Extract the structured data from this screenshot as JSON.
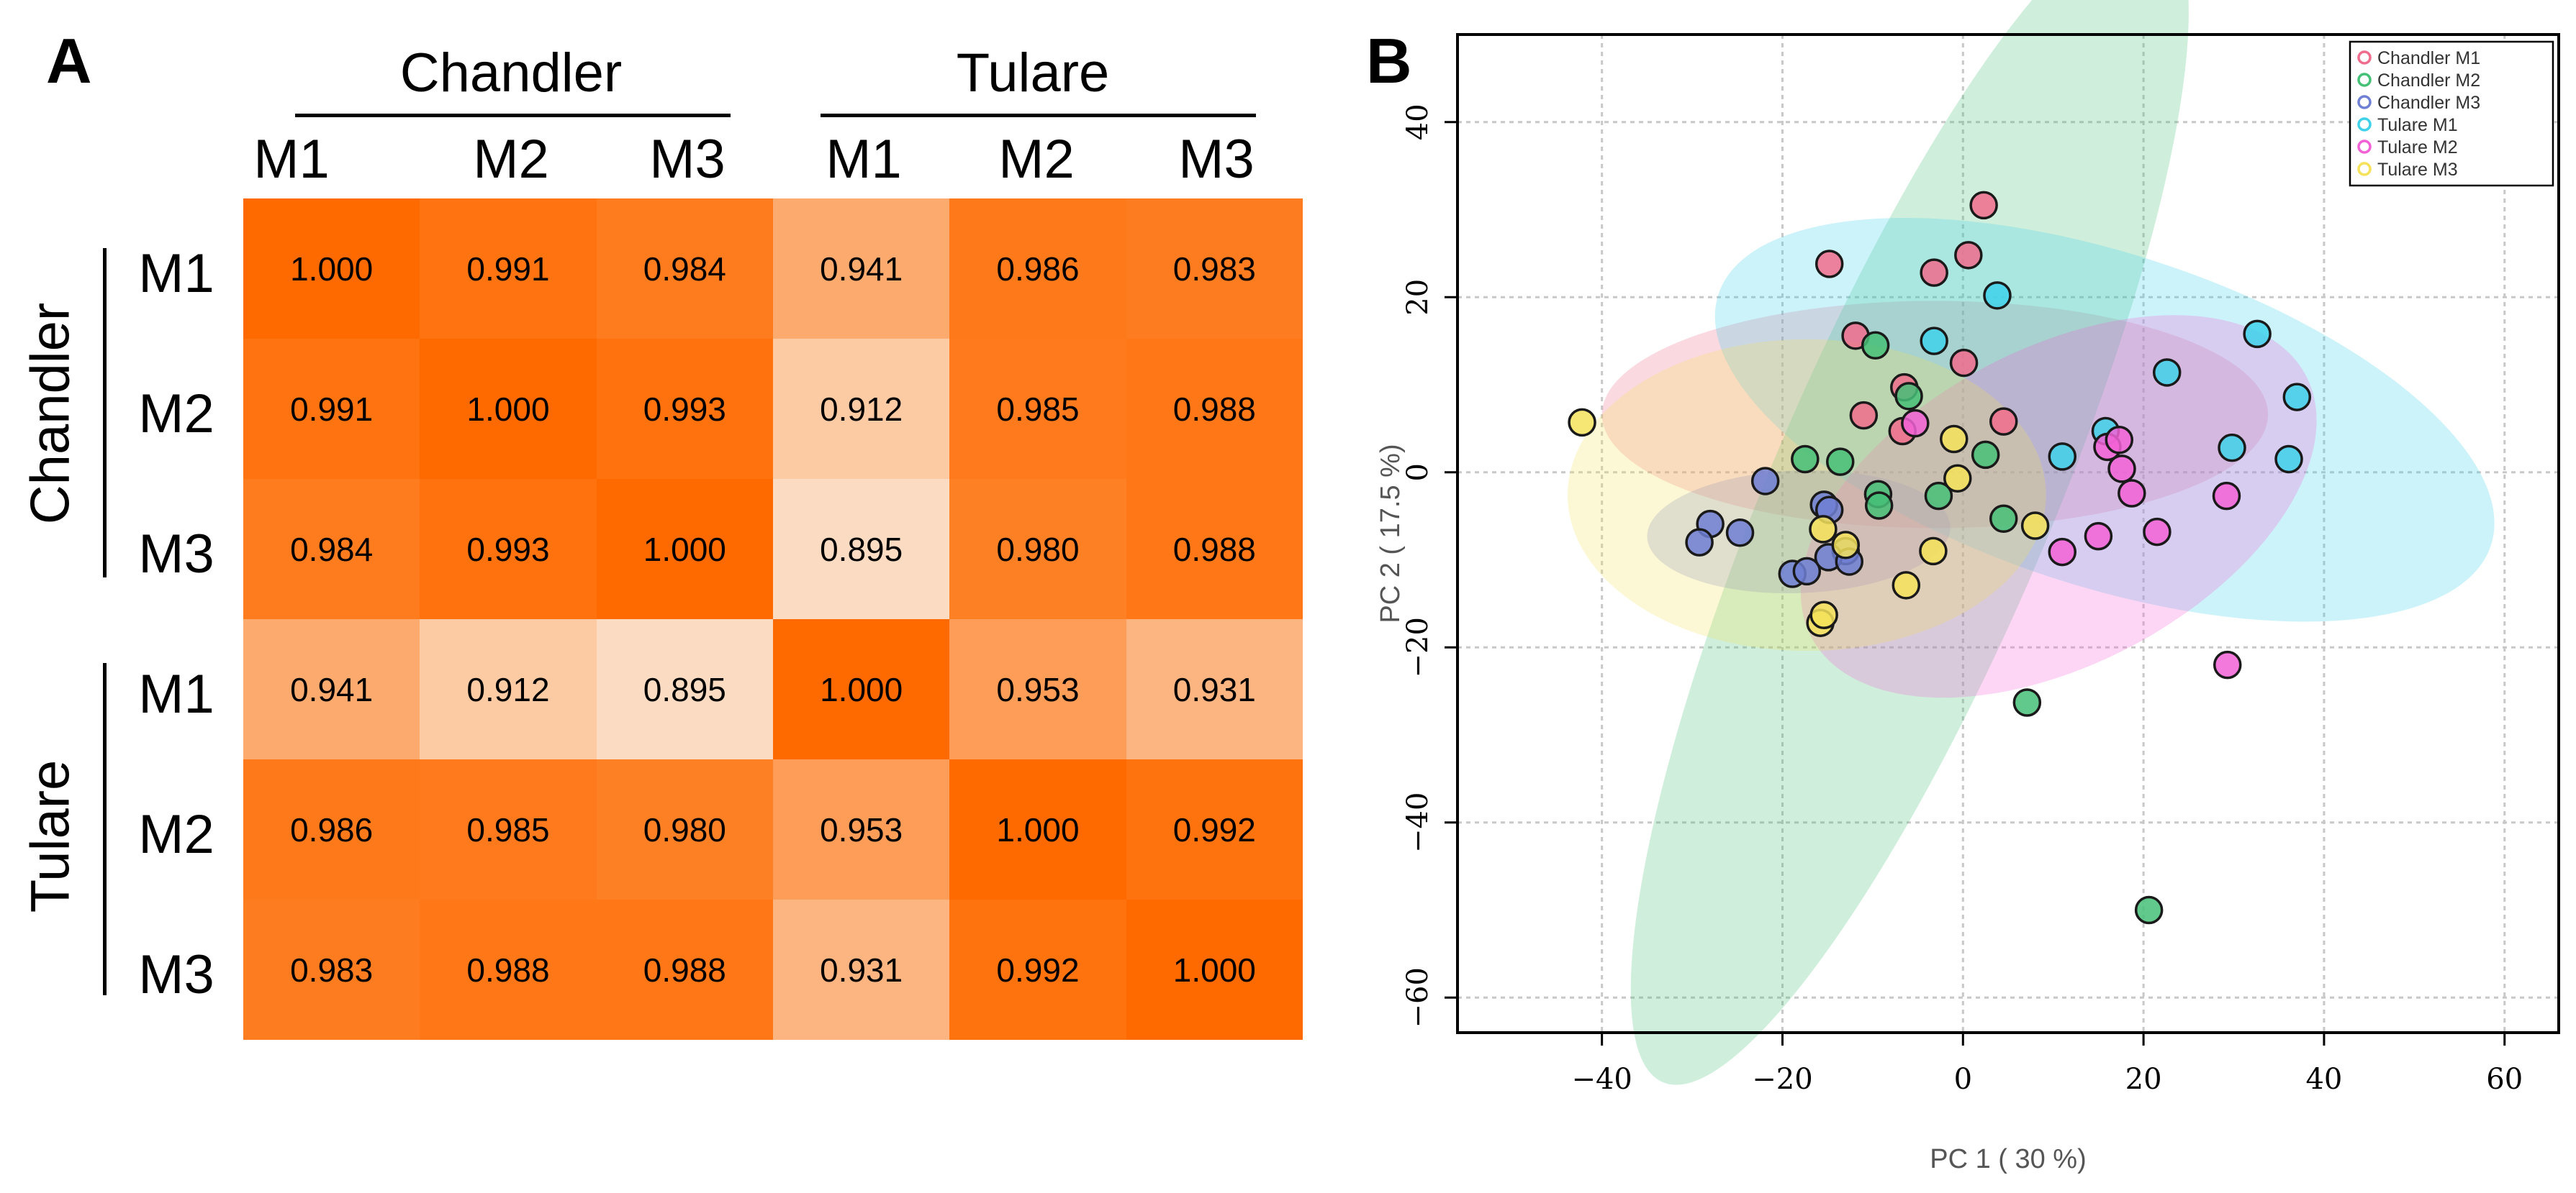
{
  "panels": {
    "a_label": "A",
    "b_label": "B"
  },
  "chart_data": [
    {
      "type": "heatmap",
      "title": "",
      "column_groups": [
        "Chandler",
        "Tulare"
      ],
      "row_groups": [
        "Chandler",
        "Tulare"
      ],
      "columns": [
        "M1",
        "M2",
        "M3",
        "M1",
        "M2",
        "M3"
      ],
      "rows": [
        "M1",
        "M2",
        "M3",
        "M1",
        "M2",
        "M3"
      ],
      "values": [
        [
          1.0,
          0.991,
          0.984,
          0.941,
          0.986,
          0.983
        ],
        [
          0.991,
          1.0,
          0.993,
          0.912,
          0.985,
          0.988
        ],
        [
          0.984,
          0.993,
          1.0,
          0.895,
          0.98,
          0.988
        ],
        [
          0.941,
          0.912,
          0.895,
          1.0,
          0.953,
          0.931
        ],
        [
          0.986,
          0.985,
          0.98,
          0.953,
          1.0,
          0.992
        ],
        [
          0.983,
          0.988,
          0.988,
          0.931,
          0.992,
          1.0
        ]
      ],
      "value_labels": [
        [
          "1.000",
          "0.991",
          "0.984",
          "0.941",
          "0.986",
          "0.983"
        ],
        [
          "0.991",
          "1.000",
          "0.993",
          "0.912",
          "0.985",
          "0.988"
        ],
        [
          "0.984",
          "0.993",
          "1.000",
          "0.895",
          "0.980",
          "0.988"
        ],
        [
          "0.941",
          "0.912",
          "0.895",
          "1.000",
          "0.953",
          "0.931"
        ],
        [
          "0.986",
          "0.985",
          "0.980",
          "0.953",
          "1.000",
          "0.992"
        ],
        [
          "0.983",
          "0.988",
          "0.988",
          "0.931",
          "0.992",
          "1.000"
        ]
      ],
      "value_range": [
        0.895,
        1.0
      ],
      "colors": {
        "low": "#FBDCC3",
        "high": "#FF6A00"
      }
    },
    {
      "type": "scatter",
      "title": "",
      "xlabel": "PC 1 ( 30 %)",
      "ylabel": "PC 2 ( 17.5 %)",
      "xlim": [
        -56,
        66
      ],
      "ylim": [
        -64,
        50
      ],
      "xticks": [
        -40,
        -20,
        0,
        20,
        40,
        60
      ],
      "yticks": [
        -60,
        -40,
        -20,
        0,
        20,
        40
      ],
      "xtick_labels": [
        "−40",
        "−20",
        "0",
        "20",
        "40",
        "60"
      ],
      "ytick_labels": [
        "−60",
        "−40",
        "−20",
        "0",
        "20",
        "40"
      ],
      "grid": true,
      "legend_position": "top-right",
      "series": [
        {
          "name": "Chandler M1",
          "color": "#F06C8C",
          "ellipse": {
            "cx": -3.1,
            "cy": 6.6,
            "rx": 12.6,
            "ry": 38,
            "angle": 90
          },
          "points": [
            [
              2.3,
              30.5
            ],
            [
              -14.8,
              23.8
            ],
            [
              -3.2,
              22.8
            ],
            [
              0.6,
              24.8
            ],
            [
              -11.9,
              15.6
            ],
            [
              0.1,
              12.5
            ],
            [
              -6.5,
              9.7
            ],
            [
              -6.7,
              4.7
            ],
            [
              4.5,
              5.8
            ],
            [
              -11.0,
              6.5
            ]
          ]
        },
        {
          "name": "Chandler M2",
          "color": "#45C077",
          "ellipse": {
            "cx": -5.9,
            "cy": -3.3,
            "rx": 70,
            "ry": 16.1,
            "angle": -67
          },
          "points": [
            [
              -9.7,
              14.5
            ],
            [
              -6.0,
              8.7
            ],
            [
              -9.4,
              -2.5
            ],
            [
              -9.3,
              -3.8
            ],
            [
              -2.7,
              -2.7
            ],
            [
              2.5,
              2.0
            ],
            [
              4.5,
              -5.3
            ],
            [
              -17.5,
              1.5
            ],
            [
              -13.6,
              1.2
            ],
            [
              7.1,
              -26.3
            ],
            [
              20.6,
              -50.0
            ]
          ]
        },
        {
          "name": "Chandler M3",
          "color": "#6F7FD3",
          "ellipse": {
            "cx": -18.2,
            "cy": -6.8,
            "rx": 16.8,
            "ry": 7.0,
            "angle": -2
          },
          "points": [
            [
              -21.9,
              -1.0
            ],
            [
              -28.0,
              -5.9
            ],
            [
              -29.2,
              -8.0
            ],
            [
              -24.7,
              -6.9
            ],
            [
              -15.4,
              -3.7
            ],
            [
              -14.8,
              -4.3
            ],
            [
              -13.0,
              -9.0
            ],
            [
              -18.9,
              -11.6
            ],
            [
              -17.3,
              -11.3
            ],
            [
              -14.9,
              -9.7
            ],
            [
              -12.6,
              -10.2
            ]
          ]
        },
        {
          "name": "Tulare M1",
          "color": "#3FD1EA",
          "ellipse": {
            "cx": 15.7,
            "cy": 6.0,
            "rx": 45,
            "ry": 19.0,
            "angle": 18
          },
          "points": [
            [
              -3.2,
              15.0
            ],
            [
              3.8,
              20.2
            ],
            [
              11.0,
              1.8
            ],
            [
              15.8,
              4.7
            ],
            [
              22.6,
              11.4
            ],
            [
              29.8,
              2.8
            ],
            [
              32.6,
              15.8
            ],
            [
              36.1,
              1.5
            ],
            [
              37.0,
              8.6
            ]
          ]
        },
        {
          "name": "Tulare M2",
          "color": "#F261D6",
          "ellipse": {
            "cx": 10.6,
            "cy": -3.9,
            "rx": 31,
            "ry": 18.0,
            "angle": -28
          },
          "points": [
            [
              -5.3,
              5.6
            ],
            [
              16.0,
              2.9
            ],
            [
              17.3,
              3.7
            ],
            [
              17.6,
              0.4
            ],
            [
              18.7,
              -2.4
            ],
            [
              15.0,
              -7.3
            ],
            [
              11.0,
              -9.1
            ],
            [
              21.5,
              -6.8
            ],
            [
              29.2,
              -2.7
            ],
            [
              29.3,
              -22.0
            ]
          ]
        },
        {
          "name": "Tulare M3",
          "color": "#F5E25A",
          "ellipse": {
            "cx": -17.3,
            "cy": -2.6,
            "rx": 26.5,
            "ry": 17.8,
            "angle": 0
          },
          "points": [
            [
              -42.2,
              5.7
            ],
            [
              -15.5,
              -6.5
            ],
            [
              -13.0,
              -8.3
            ],
            [
              -6.3,
              -12.9
            ],
            [
              -15.8,
              -17.2
            ],
            [
              -15.4,
              -16.3
            ],
            [
              -3.3,
              -9.0
            ],
            [
              -0.6,
              -0.7
            ],
            [
              -1.0,
              3.8
            ],
            [
              8.0,
              -6.1
            ]
          ]
        }
      ]
    }
  ]
}
